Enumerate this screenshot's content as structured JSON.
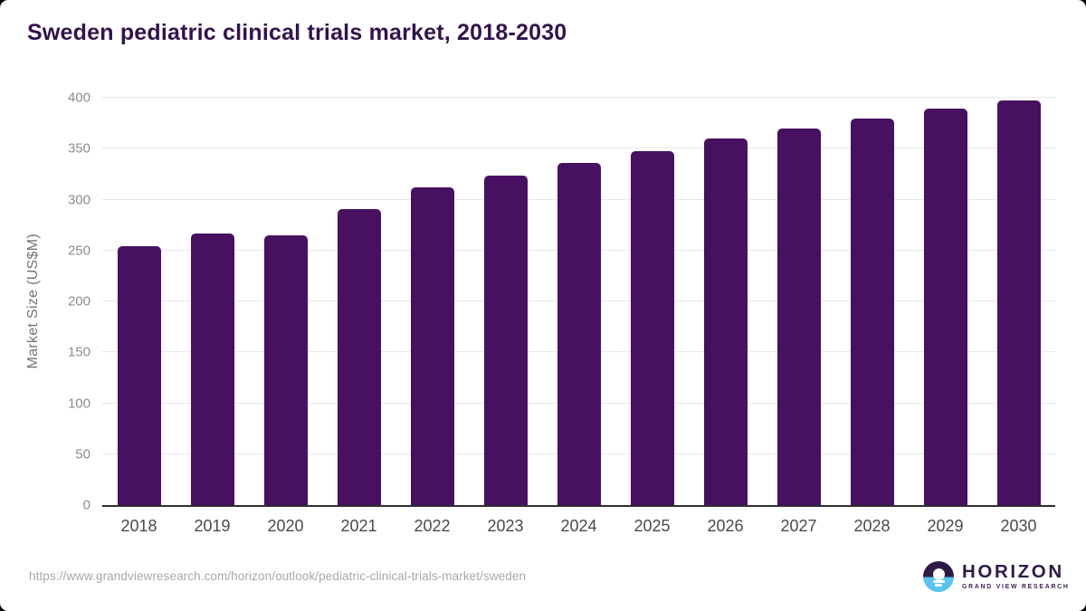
{
  "title": "Sweden pediatric clinical trials market, 2018-2030",
  "chart_data": {
    "type": "bar",
    "title": "Sweden pediatric clinical trials market, 2018-2030",
    "categories": [
      "2018",
      "2019",
      "2020",
      "2021",
      "2022",
      "2023",
      "2024",
      "2025",
      "2026",
      "2027",
      "2028",
      "2029",
      "2030"
    ],
    "values": [
      254,
      267,
      265,
      291,
      312,
      324,
      336,
      348,
      360,
      370,
      380,
      389,
      397
    ],
    "xlabel": "",
    "ylabel": "Market Size (US$M)",
    "ylim": [
      0,
      400
    ],
    "yticks": [
      0,
      50,
      100,
      150,
      200,
      250,
      300,
      350,
      400
    ],
    "grid": "horizontal",
    "legend": "none"
  },
  "footer": {
    "source_url": "https://www.grandviewresearch.com/horizon/outlook/pediatric-clinical-trials-market/sweden",
    "logo": {
      "brand": "HORIZON",
      "sub_brand": "GRAND VIEW RESEARCH"
    }
  },
  "colors": {
    "bar": "#471060",
    "title_text": "#33124d",
    "axis_line": "#2f2f2f",
    "grid_line": "#e7e7e7",
    "y_tick_label": "#8c8c8c",
    "x_tick_label": "#4a4a4a",
    "y_axis_title": "#757575",
    "url_text": "#a8a8a8",
    "logo_purple": "#2e1a47",
    "logo_blue": "#5bc3ef",
    "logo_sub_text": "#3a1f5d"
  }
}
